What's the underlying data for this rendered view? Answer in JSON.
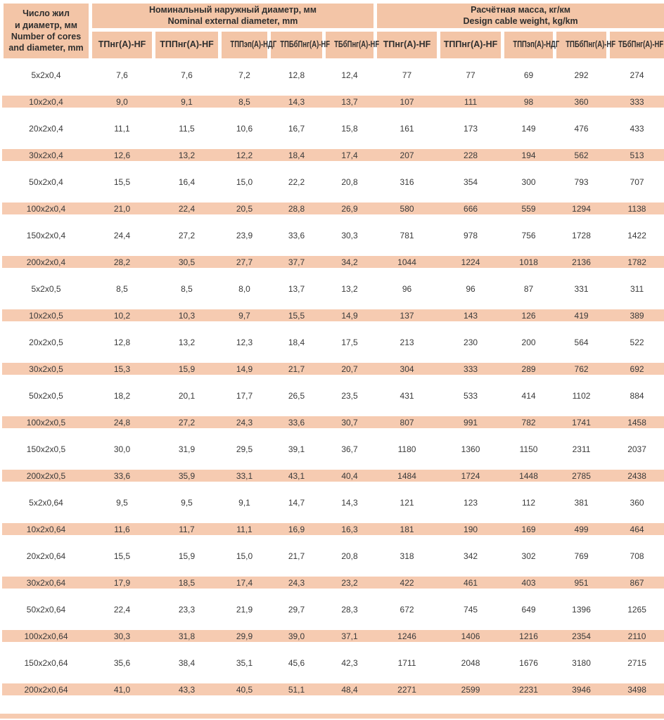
{
  "colors": {
    "header_bg": "#f3c5a7",
    "stripe_bg": "#f6cbb1"
  },
  "table": {
    "row_header": {
      "ru": "Число жил\nи диаметр, мм",
      "en": "Number of cores\nand diameter, mm"
    },
    "groups": [
      {
        "ru": "Номинальный наружный диаметр, мм",
        "en": "Nominal external diameter, mm"
      },
      {
        "ru": "Расчётная масса, кг/км",
        "en": "Design cable weight, kg/km"
      }
    ],
    "cable_types": [
      "ТПнг(А)-HF",
      "ТППнг(А)-HF",
      "ТППэп(А)-НДГ",
      "ТПБбПнг(А)-HF",
      "ТБбПнг(А)-HF"
    ],
    "rows": [
      {
        "label": "5x2x0,4",
        "diameters": [
          "7,6",
          "7,6",
          "7,2",
          "12,8",
          "12,4"
        ],
        "weights": [
          "77",
          "77",
          "69",
          "292",
          "274"
        ]
      },
      {
        "label": "10x2x0,4",
        "diameters": [
          "9,0",
          "9,1",
          "8,5",
          "14,3",
          "13,7"
        ],
        "weights": [
          "107",
          "111",
          "98",
          "360",
          "333"
        ]
      },
      {
        "label": "20x2x0,4",
        "diameters": [
          "11,1",
          "11,5",
          "10,6",
          "16,7",
          "15,8"
        ],
        "weights": [
          "161",
          "173",
          "149",
          "476",
          "433"
        ]
      },
      {
        "label": "30x2x0,4",
        "diameters": [
          "12,6",
          "13,2",
          "12,2",
          "18,4",
          "17,4"
        ],
        "weights": [
          "207",
          "228",
          "194",
          "562",
          "513"
        ]
      },
      {
        "label": "50x2x0,4",
        "diameters": [
          "15,5",
          "16,4",
          "15,0",
          "22,2",
          "20,8"
        ],
        "weights": [
          "316",
          "354",
          "300",
          "793",
          "707"
        ]
      },
      {
        "label": "100x2x0,4",
        "diameters": [
          "21,0",
          "22,4",
          "20,5",
          "28,8",
          "26,9"
        ],
        "weights": [
          "580",
          "666",
          "559",
          "1294",
          "1138"
        ]
      },
      {
        "label": "150x2x0,4",
        "diameters": [
          "24,4",
          "27,2",
          "23,9",
          "33,6",
          "30,3"
        ],
        "weights": [
          "781",
          "978",
          "756",
          "1728",
          "1422"
        ]
      },
      {
        "label": "200x2x0,4",
        "diameters": [
          "28,2",
          "30,5",
          "27,7",
          "37,7",
          "34,2"
        ],
        "weights": [
          "1044",
          "1224",
          "1018",
          "2136",
          "1782"
        ]
      },
      {
        "label": "5x2x0,5",
        "diameters": [
          "8,5",
          "8,5",
          "8,0",
          "13,7",
          "13,2"
        ],
        "weights": [
          "96",
          "96",
          "87",
          "331",
          "311"
        ]
      },
      {
        "label": "10x2x0,5",
        "diameters": [
          "10,2",
          "10,3",
          "9,7",
          "15,5",
          "14,9"
        ],
        "weights": [
          "137",
          "143",
          "126",
          "419",
          "389"
        ]
      },
      {
        "label": "20x2x0,5",
        "diameters": [
          "12,8",
          "13,2",
          "12,3",
          "18,4",
          "17,5"
        ],
        "weights": [
          "213",
          "230",
          "200",
          "564",
          "522"
        ]
      },
      {
        "label": "30x2x0,5",
        "diameters": [
          "15,3",
          "15,9",
          "14,9",
          "21,7",
          "20,7"
        ],
        "weights": [
          "304",
          "333",
          "289",
          "762",
          "692"
        ]
      },
      {
        "label": "50x2x0,5",
        "diameters": [
          "18,2",
          "20,1",
          "17,7",
          "26,5",
          "23,5"
        ],
        "weights": [
          "431",
          "533",
          "414",
          "1102",
          "884"
        ]
      },
      {
        "label": "100x2x0,5",
        "diameters": [
          "24,8",
          "27,2",
          "24,3",
          "33,6",
          "30,7"
        ],
        "weights": [
          "807",
          "991",
          "782",
          "1741",
          "1458"
        ]
      },
      {
        "label": "150x2x0,5",
        "diameters": [
          "30,0",
          "31,9",
          "29,5",
          "39,1",
          "36,7"
        ],
        "weights": [
          "1180",
          "1360",
          "1150",
          "2311",
          "2037"
        ]
      },
      {
        "label": "200x2x0,5",
        "diameters": [
          "33,6",
          "35,9",
          "33,1",
          "43,1",
          "40,4"
        ],
        "weights": [
          "1484",
          "1724",
          "1448",
          "2785",
          "2438"
        ]
      },
      {
        "label": "5x2x0,64",
        "diameters": [
          "9,5",
          "9,5",
          "9,1",
          "14,7",
          "14,3"
        ],
        "weights": [
          "121",
          "123",
          "112",
          "381",
          "360"
        ]
      },
      {
        "label": "10x2x0,64",
        "diameters": [
          "11,6",
          "11,7",
          "11,1",
          "16,9",
          "16,3"
        ],
        "weights": [
          "181",
          "190",
          "169",
          "499",
          "464"
        ]
      },
      {
        "label": "20x2x0,64",
        "diameters": [
          "15,5",
          "15,9",
          "15,0",
          "21,7",
          "20,8"
        ],
        "weights": [
          "318",
          "342",
          "302",
          "769",
          "708"
        ]
      },
      {
        "label": "30x2x0,64",
        "diameters": [
          "17,9",
          "18,5",
          "17,4",
          "24,3",
          "23,2"
        ],
        "weights": [
          "422",
          "461",
          "403",
          "951",
          "867"
        ]
      },
      {
        "label": "50x2x0,64",
        "diameters": [
          "22,4",
          "23,3",
          "21,9",
          "29,7",
          "28,3"
        ],
        "weights": [
          "672",
          "745",
          "649",
          "1396",
          "1265"
        ]
      },
      {
        "label": "100x2x0,64",
        "diameters": [
          "30,3",
          "31,8",
          "29,9",
          "39,0",
          "37,1"
        ],
        "weights": [
          "1246",
          "1406",
          "1216",
          "2354",
          "2110"
        ]
      },
      {
        "label": "150x2x0,64",
        "diameters": [
          "35,6",
          "38,4",
          "35,1",
          "45,6",
          "42,3"
        ],
        "weights": [
          "1711",
          "2048",
          "1676",
          "3180",
          "2715"
        ]
      },
      {
        "label": "200x2x0,64",
        "diameters": [
          "41,0",
          "43,3",
          "40,5",
          "51,1",
          "48,4"
        ],
        "weights": [
          "2271",
          "2599",
          "2231",
          "3946",
          "3498"
        ]
      }
    ]
  }
}
